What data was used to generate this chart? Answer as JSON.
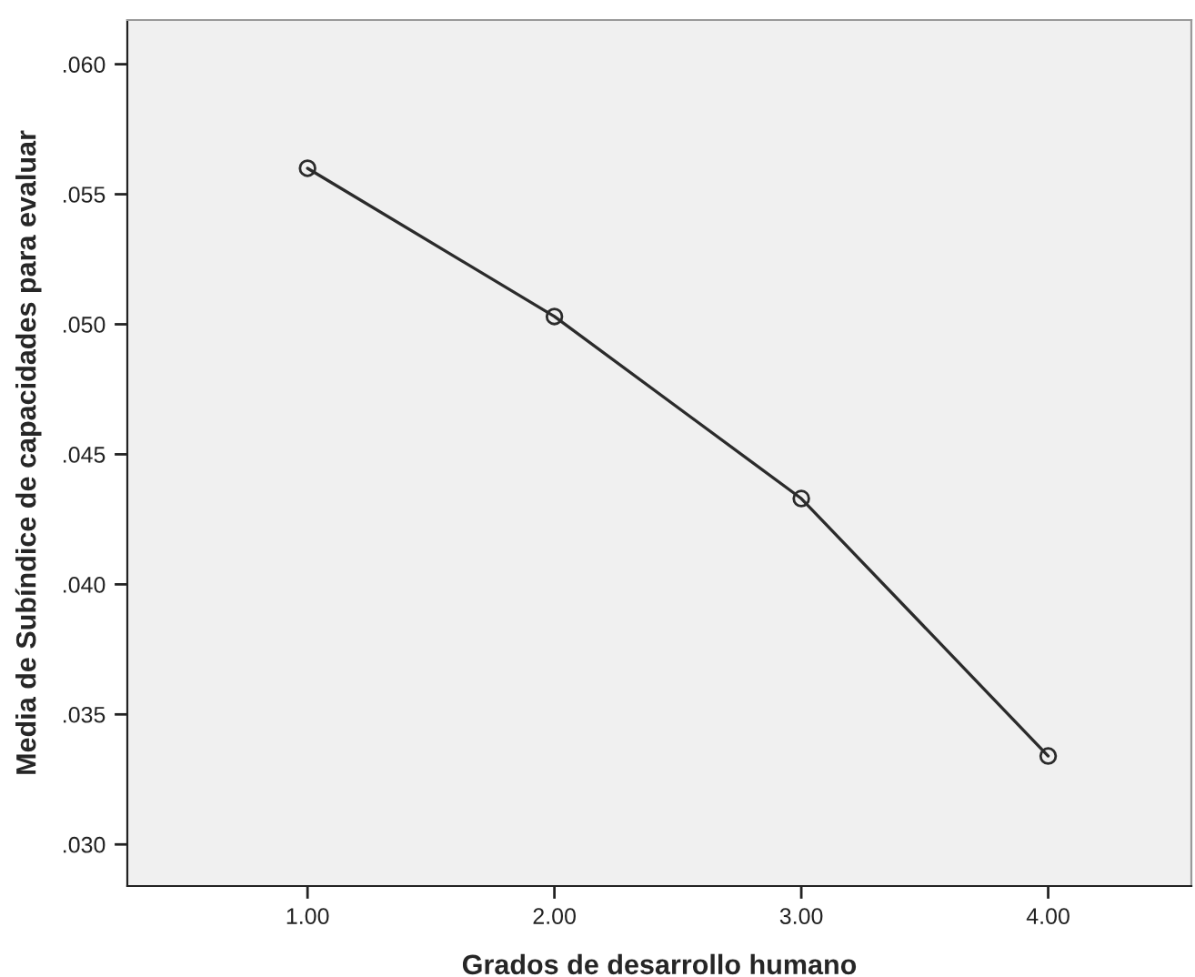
{
  "chart_data": {
    "type": "line",
    "xlabel": "Grados de desarrollo humano",
    "ylabel": "Media de Subíndice de capacidades para evaluar",
    "x": [
      1,
      2,
      3,
      4
    ],
    "series": [
      {
        "color": "#2b2b2b",
        "values": [
          0.056,
          0.0503,
          0.0433,
          0.0334
        ]
      }
    ],
    "xlim": [
      0.27,
      4.58
    ],
    "xticks": [
      {
        "value": 1,
        "label": "1.00"
      },
      {
        "value": 2,
        "label": "2.00"
      },
      {
        "value": 3,
        "label": "3.00"
      },
      {
        "value": 4,
        "label": "4.00"
      }
    ],
    "ylim": [
      0.0284,
      0.0617
    ],
    "yticks": [
      {
        "value": 0.03,
        "label": ".030"
      },
      {
        "value": 0.035,
        "label": ".035"
      },
      {
        "value": 0.04,
        "label": ".040"
      },
      {
        "value": 0.045,
        "label": ".045"
      },
      {
        "value": 0.05,
        "label": ".050"
      },
      {
        "value": 0.055,
        "label": ".055"
      },
      {
        "value": 0.06,
        "label": ".060"
      }
    ],
    "marker": "circle",
    "line_style": "solid",
    "grid": false,
    "legend": false
  }
}
